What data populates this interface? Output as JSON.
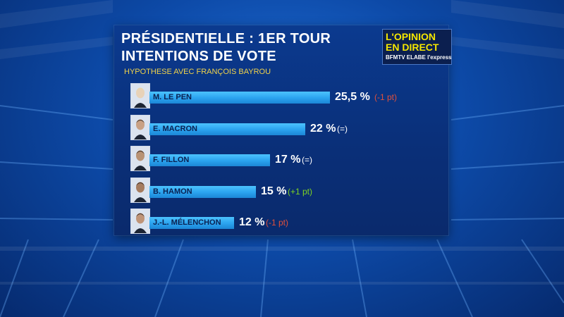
{
  "colors": {
    "bar": "#2aa2ee",
    "title": "#ffffff",
    "subtitle": "#f0d24a",
    "logo_text": "#f4e600",
    "change_down": "#e0503c",
    "change_up": "#7ed321",
    "change_equal": "#ffffff"
  },
  "logo": {
    "line1": "L'OPINION",
    "line2": "EN DIRECT",
    "brands": "BFMTV ELABE l'express"
  },
  "chart_data": {
    "type": "bar",
    "orientation": "horizontal",
    "title": "PRÉSIDENTIELLE : 1ER TOUR",
    "title_line2": "INTENTIONS DE VOTE",
    "subtitle": "HYPOTHESE AVEC FRANÇOIS BAYROU",
    "xlim": [
      0,
      25.5
    ],
    "categories": [
      "M. LE PEN",
      "E. MACRON",
      "F. FILLON",
      "B. HAMON",
      "J.-L. MÉLENCHON"
    ],
    "values": [
      25.5,
      22,
      17,
      15,
      12
    ],
    "value_labels": [
      "25,5 %",
      "22 %",
      "17 %",
      "15 %",
      "12 %"
    ],
    "changes": [
      {
        "text": "(-1 pt)",
        "trend": "down"
      },
      {
        "text": "(=)",
        "trend": "equal"
      },
      {
        "text": "(=)",
        "trend": "equal"
      },
      {
        "text": "(+1 pt)",
        "trend": "up"
      },
      {
        "text": "(-1 pt)",
        "trend": "down"
      }
    ],
    "grid": false,
    "legend": "none"
  }
}
